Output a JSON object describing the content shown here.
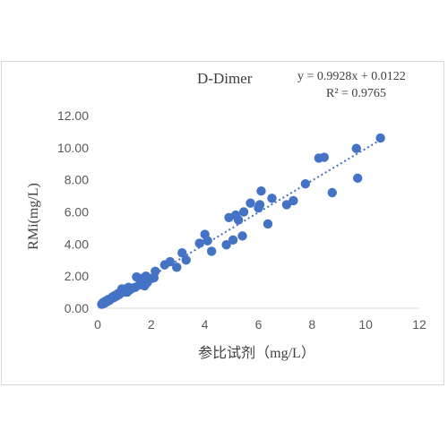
{
  "chart_data": {
    "type": "scatter",
    "title": "D-Dimer",
    "equation": "y = 0.9928x + 0.0122",
    "r_squared": "R² = 0.9765",
    "xlabel": "参比试剂（mg/L）",
    "ylabel": "RMi(mg/L)",
    "xlim": [
      0,
      12
    ],
    "ylim": [
      0,
      12
    ],
    "x_ticks": [
      "0",
      "2",
      "4",
      "6",
      "8",
      "10",
      "12"
    ],
    "y_ticks": [
      "0.00",
      "2.00",
      "4.00",
      "6.00",
      "8.00",
      "10.00",
      "12.00"
    ],
    "grid": false,
    "marker_color": "#4472c4",
    "trendline": {
      "slope": 0.9928,
      "intercept": 0.0122,
      "style": "dotted",
      "color": "#4472c4"
    },
    "points": [
      [
        0.15,
        0.25
      ],
      [
        0.2,
        0.35
      ],
      [
        0.25,
        0.3
      ],
      [
        0.3,
        0.45
      ],
      [
        0.35,
        0.4
      ],
      [
        0.4,
        0.55
      ],
      [
        0.45,
        0.5
      ],
      [
        0.5,
        0.6
      ],
      [
        0.55,
        0.7
      ],
      [
        0.6,
        0.65
      ],
      [
        0.65,
        0.8
      ],
      [
        0.7,
        0.75
      ],
      [
        0.75,
        0.9
      ],
      [
        0.8,
        0.85
      ],
      [
        0.85,
        1.0
      ],
      [
        0.9,
        1.2
      ],
      [
        0.95,
        1.0
      ],
      [
        1.0,
        1.1
      ],
      [
        1.05,
        1.2
      ],
      [
        1.1,
        1.0
      ],
      [
        1.15,
        1.3
      ],
      [
        1.2,
        1.15
      ],
      [
        1.3,
        1.25
      ],
      [
        1.4,
        1.3
      ],
      [
        1.45,
        1.95
      ],
      [
        1.55,
        1.45
      ],
      [
        1.65,
        1.85
      ],
      [
        1.75,
        1.4
      ],
      [
        1.8,
        2.0
      ],
      [
        1.85,
        1.6
      ],
      [
        2.0,
        1.85
      ],
      [
        2.1,
        1.9
      ],
      [
        2.15,
        2.3
      ],
      [
        2.5,
        2.7
      ],
      [
        2.7,
        2.9
      ],
      [
        2.95,
        2.55
      ],
      [
        3.15,
        3.45
      ],
      [
        3.3,
        3.0
      ],
      [
        3.8,
        4.05
      ],
      [
        4.0,
        4.6
      ],
      [
        4.1,
        4.2
      ],
      [
        4.25,
        3.55
      ],
      [
        4.8,
        3.95
      ],
      [
        4.9,
        5.65
      ],
      [
        5.05,
        4.25
      ],
      [
        5.15,
        5.8
      ],
      [
        5.25,
        5.5
      ],
      [
        5.4,
        4.5
      ],
      [
        5.45,
        6.0
      ],
      [
        5.7,
        6.55
      ],
      [
        6.0,
        6.25
      ],
      [
        6.05,
        6.45
      ],
      [
        6.1,
        7.3
      ],
      [
        6.35,
        5.25
      ],
      [
        6.5,
        6.85
      ],
      [
        7.05,
        6.45
      ],
      [
        7.3,
        6.7
      ],
      [
        7.75,
        7.75
      ],
      [
        8.25,
        9.35
      ],
      [
        8.45,
        9.4
      ],
      [
        8.75,
        7.2
      ],
      [
        9.65,
        9.95
      ],
      [
        9.7,
        8.1
      ],
      [
        10.55,
        10.6
      ]
    ]
  }
}
